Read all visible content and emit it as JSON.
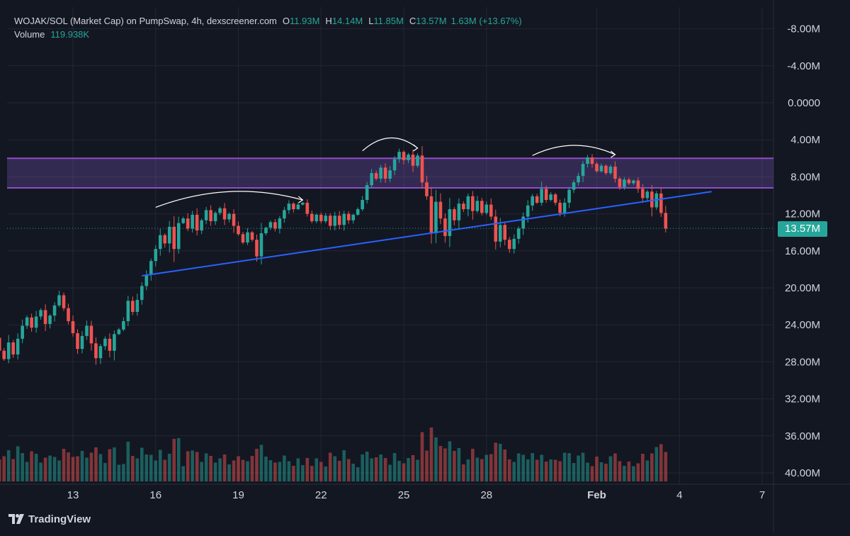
{
  "legend": {
    "title": "WOJAK/SOL (Market Cap) on PumpSwap, 4h, dexscreener.com",
    "open_label": "O",
    "open_value": "11.93M",
    "high_label": "H",
    "high_value": "14.14M",
    "low_label": "L",
    "low_value": "11.85M",
    "close_label": "C",
    "close_value": "13.57M",
    "change": "1.63M (+13.67%)",
    "volume_label": "Volume",
    "volume_value": "119.938K"
  },
  "branding": {
    "logo_text": "TradingView"
  },
  "colors": {
    "background": "#131722",
    "up": "#26a69a",
    "down": "#ef5350",
    "trendline": "#2962ff",
    "zone": "#7e57c2",
    "text": "#d1d4dc"
  },
  "chart_data": {
    "type": "candlestick",
    "timeframe": "4h",
    "axis_inverted": true,
    "ylim": [
      -10000000,
      41000000
    ],
    "y_ticks": [
      "-8.00M",
      "-4.00M",
      "0.0000",
      "4.00M",
      "8.00M",
      "12.00M",
      "16.00M",
      "20.00M",
      "24.00M",
      "28.00M",
      "32.00M",
      "36.00M",
      "40.00M"
    ],
    "y_tick_values": [
      -8000000,
      -4000000,
      0,
      4000000,
      8000000,
      12000000,
      16000000,
      20000000,
      24000000,
      28000000,
      32000000,
      36000000,
      40000000
    ],
    "x_ticks": [
      "13",
      "16",
      "19",
      "22",
      "25",
      "28",
      "Feb",
      "4",
      "7"
    ],
    "x_tick_dates": [
      "2025-01-13",
      "2025-01-16",
      "2025-01-19",
      "2025-01-22",
      "2025-01-25",
      "2025-01-28",
      "2025-02-01",
      "2025-02-04",
      "2025-02-07"
    ],
    "x_range": [
      "2025-01-10T12:00",
      "2025-02-08T12:00"
    ],
    "last_price_label": "13.57M",
    "last_price": 13570000,
    "resistance_zone": [
      6000000,
      9200000
    ],
    "trendline": [
      [
        "2025-01-16T00:00",
        18700000
      ],
      [
        "2025-02-05T16:00",
        9600000
      ]
    ],
    "arcs": [
      {
        "from": [
          "2025-01-16T12:00",
          11300000
        ],
        "to": [
          "2025-01-21T20:00",
          10500000
        ],
        "peak": 9600000
      },
      {
        "from": [
          "2025-01-24T00:00",
          5200000
        ],
        "to": [
          "2025-01-26T00:00",
          4900000
        ],
        "peak": 3800000
      },
      {
        "from": [
          "2025-01-30T04:00",
          5700000
        ],
        "to": [
          "2025-02-02T04:00",
          5600000
        ],
        "peak": 4600000
      }
    ],
    "series": [
      {
        "name": "Market Cap",
        "candles": [
          {
            "t": "2025-01-10T20:00",
            "o": 25400000,
            "c": 26800000
          },
          {
            "t": "2025-01-11T00:00",
            "o": 26800000,
            "c": 27700000
          },
          {
            "t": "2025-01-11T04:00",
            "o": 27700000,
            "c": 25900000
          },
          {
            "t": "2025-01-11T08:00",
            "o": 25900000,
            "c": 27200000
          },
          {
            "t": "2025-01-11T12:00",
            "o": 27200000,
            "c": 25500000
          },
          {
            "t": "2025-01-11T16:00",
            "o": 25500000,
            "c": 24100000
          },
          {
            "t": "2025-01-11T20:00",
            "o": 24100000,
            "c": 23200000
          },
          {
            "t": "2025-01-12T00:00",
            "o": 23200000,
            "c": 24300000
          },
          {
            "t": "2025-01-12T04:00",
            "o": 24300000,
            "c": 23100000
          },
          {
            "t": "2025-01-12T08:00",
            "o": 23100000,
            "c": 22400000
          },
          {
            "t": "2025-01-12T12:00",
            "o": 22400000,
            "c": 23900000
          },
          {
            "t": "2025-01-12T16:00",
            "o": 23900000,
            "c": 23000000
          },
          {
            "t": "2025-01-12T20:00",
            "o": 23000000,
            "c": 21900000
          },
          {
            "t": "2025-01-13T00:00",
            "o": 21900000,
            "c": 20800000
          },
          {
            "t": "2025-01-13T04:00",
            "o": 20800000,
            "c": 22200000
          },
          {
            "t": "2025-01-13T08:00",
            "o": 22200000,
            "c": 23600000
          },
          {
            "t": "2025-01-13T12:00",
            "o": 23600000,
            "c": 24900000
          },
          {
            "t": "2025-01-13T16:00",
            "o": 24900000,
            "c": 26600000
          },
          {
            "t": "2025-01-13T20:00",
            "o": 26600000,
            "c": 25200000
          },
          {
            "t": "2025-01-14T00:00",
            "o": 25200000,
            "c": 24100000
          },
          {
            "t": "2025-01-14T04:00",
            "o": 24100000,
            "c": 26000000
          },
          {
            "t": "2025-01-14T08:00",
            "o": 26000000,
            "c": 27600000
          },
          {
            "t": "2025-01-14T12:00",
            "o": 27600000,
            "c": 26300000
          },
          {
            "t": "2025-01-14T16:00",
            "o": 26300000,
            "c": 25500000
          },
          {
            "t": "2025-01-14T20:00",
            "o": 25500000,
            "c": 26800000
          },
          {
            "t": "2025-01-15T00:00",
            "o": 26800000,
            "c": 25000000
          },
          {
            "t": "2025-01-15T04:00",
            "o": 25000000,
            "c": 24500000
          },
          {
            "t": "2025-01-15T08:00",
            "o": 24500000,
            "c": 23600000
          },
          {
            "t": "2025-01-15T12:00",
            "o": 23600000,
            "c": 21400000
          },
          {
            "t": "2025-01-15T16:00",
            "o": 21400000,
            "c": 22600000
          },
          {
            "t": "2025-01-15T20:00",
            "o": 22600000,
            "c": 21300000
          },
          {
            "t": "2025-01-16T00:00",
            "o": 21300000,
            "c": 19800000
          },
          {
            "t": "2025-01-16T04:00",
            "o": 19800000,
            "c": 18600000
          },
          {
            "t": "2025-01-16T08:00",
            "o": 18600000,
            "c": 17100000
          },
          {
            "t": "2025-01-16T12:00",
            "o": 17100000,
            "c": 15800000
          },
          {
            "t": "2025-01-16T16:00",
            "o": 15800000,
            "c": 14300000
          },
          {
            "t": "2025-01-16T20:00",
            "o": 14300000,
            "c": 15200000
          },
          {
            "t": "2025-01-17T00:00",
            "o": 15200000,
            "c": 13400000
          },
          {
            "t": "2025-01-17T04:00",
            "o": 13400000,
            "c": 15800000
          },
          {
            "t": "2025-01-17T08:00",
            "o": 15800000,
            "c": 13000000
          },
          {
            "t": "2025-01-17T12:00",
            "o": 13000000,
            "c": 12500000
          },
          {
            "t": "2025-01-17T16:00",
            "o": 12500000,
            "c": 13600000
          },
          {
            "t": "2025-01-17T20:00",
            "o": 13600000,
            "c": 12100000
          },
          {
            "t": "2025-01-18T00:00",
            "o": 12100000,
            "c": 13800000
          },
          {
            "t": "2025-01-18T04:00",
            "o": 13800000,
            "c": 12700000
          },
          {
            "t": "2025-01-18T08:00",
            "o": 12700000,
            "c": 11600000
          },
          {
            "t": "2025-01-18T12:00",
            "o": 11600000,
            "c": 12800000
          },
          {
            "t": "2025-01-18T16:00",
            "o": 12800000,
            "c": 11900000
          },
          {
            "t": "2025-01-18T20:00",
            "o": 11900000,
            "c": 11400000
          },
          {
            "t": "2025-01-19T00:00",
            "o": 11400000,
            "c": 12600000
          },
          {
            "t": "2025-01-19T04:00",
            "o": 12600000,
            "c": 12000000
          },
          {
            "t": "2025-01-19T08:00",
            "o": 12000000,
            "c": 13300000
          },
          {
            "t": "2025-01-19T12:00",
            "o": 13300000,
            "c": 14200000
          },
          {
            "t": "2025-01-19T16:00",
            "o": 14200000,
            "c": 15100000
          },
          {
            "t": "2025-01-19T20:00",
            "o": 15100000,
            "c": 14000000
          },
          {
            "t": "2025-01-20T00:00",
            "o": 14000000,
            "c": 14800000
          },
          {
            "t": "2025-01-20T04:00",
            "o": 14800000,
            "c": 16600000
          },
          {
            "t": "2025-01-20T08:00",
            "o": 16600000,
            "c": 14100000
          },
          {
            "t": "2025-01-20T12:00",
            "o": 14100000,
            "c": 13500000
          },
          {
            "t": "2025-01-20T16:00",
            "o": 13500000,
            "c": 12900000
          },
          {
            "t": "2025-01-20T20:00",
            "o": 12900000,
            "c": 13600000
          },
          {
            "t": "2025-01-21T00:00",
            "o": 13600000,
            "c": 12500000
          },
          {
            "t": "2025-01-21T04:00",
            "o": 12500000,
            "c": 11600000
          },
          {
            "t": "2025-01-21T08:00",
            "o": 11600000,
            "c": 10900000
          },
          {
            "t": "2025-01-21T12:00",
            "o": 10900000,
            "c": 11500000
          },
          {
            "t": "2025-01-21T16:00",
            "o": 11500000,
            "c": 11000000
          },
          {
            "t": "2025-01-21T20:00",
            "o": 11000000,
            "c": 10800000
          },
          {
            "t": "2025-01-22T00:00",
            "o": 10800000,
            "c": 12000000
          },
          {
            "t": "2025-01-22T04:00",
            "o": 12000000,
            "c": 12800000
          },
          {
            "t": "2025-01-22T08:00",
            "o": 12800000,
            "c": 12100000
          },
          {
            "t": "2025-01-22T12:00",
            "o": 12100000,
            "c": 12800000
          },
          {
            "t": "2025-01-22T16:00",
            "o": 12800000,
            "c": 12200000
          },
          {
            "t": "2025-01-22T20:00",
            "o": 12200000,
            "c": 13300000
          },
          {
            "t": "2025-01-23T00:00",
            "o": 13300000,
            "c": 12200000
          },
          {
            "t": "2025-01-23T04:00",
            "o": 12200000,
            "c": 13200000
          },
          {
            "t": "2025-01-23T08:00",
            "o": 13200000,
            "c": 12000000
          },
          {
            "t": "2025-01-23T12:00",
            "o": 12000000,
            "c": 12700000
          },
          {
            "t": "2025-01-23T16:00",
            "o": 12700000,
            "c": 12100000
          },
          {
            "t": "2025-01-23T20:00",
            "o": 12100000,
            "c": 11500000
          },
          {
            "t": "2025-01-24T00:00",
            "o": 11500000,
            "c": 10500000
          },
          {
            "t": "2025-01-24T04:00",
            "o": 10500000,
            "c": 8900000
          },
          {
            "t": "2025-01-24T08:00",
            "o": 8900000,
            "c": 7600000
          },
          {
            "t": "2025-01-24T12:00",
            "o": 7600000,
            "c": 8200000
          },
          {
            "t": "2025-01-24T16:00",
            "o": 8200000,
            "c": 7000000
          },
          {
            "t": "2025-01-24T20:00",
            "o": 7000000,
            "c": 8200000
          },
          {
            "t": "2025-01-25T00:00",
            "o": 8200000,
            "c": 7300000
          },
          {
            "t": "2025-01-25T04:00",
            "o": 7300000,
            "c": 6100000
          },
          {
            "t": "2025-01-25T08:00",
            "o": 6100000,
            "c": 5300000
          },
          {
            "t": "2025-01-25T12:00",
            "o": 5300000,
            "c": 6200000
          },
          {
            "t": "2025-01-25T16:00",
            "o": 6200000,
            "c": 5600000
          },
          {
            "t": "2025-01-25T20:00",
            "o": 5600000,
            "c": 6800000
          },
          {
            "t": "2025-01-26T00:00",
            "o": 6800000,
            "c": 5700000
          },
          {
            "t": "2025-01-26T04:00",
            "o": 5700000,
            "c": 8600000
          },
          {
            "t": "2025-01-26T08:00",
            "o": 8600000,
            "c": 10100000
          },
          {
            "t": "2025-01-26T12:00",
            "o": 10100000,
            "c": 14100000
          },
          {
            "t": "2025-01-26T16:00",
            "o": 14100000,
            "c": 10700000
          },
          {
            "t": "2025-01-26T20:00",
            "o": 10700000,
            "c": 12500000
          },
          {
            "t": "2025-01-27T00:00",
            "o": 12500000,
            "c": 14400000
          },
          {
            "t": "2025-01-27T04:00",
            "o": 14400000,
            "c": 11500000
          },
          {
            "t": "2025-01-27T08:00",
            "o": 11500000,
            "c": 12700000
          },
          {
            "t": "2025-01-27T12:00",
            "o": 12700000,
            "c": 10900000
          },
          {
            "t": "2025-01-27T16:00",
            "o": 10900000,
            "c": 11500000
          },
          {
            "t": "2025-01-27T20:00",
            "o": 11500000,
            "c": 10100000
          },
          {
            "t": "2025-01-28T00:00",
            "o": 10100000,
            "c": 11700000
          },
          {
            "t": "2025-01-28T04:00",
            "o": 11700000,
            "c": 10600000
          },
          {
            "t": "2025-01-28T08:00",
            "o": 10600000,
            "c": 11900000
          },
          {
            "t": "2025-01-28T12:00",
            "o": 11900000,
            "c": 11000000
          },
          {
            "t": "2025-01-28T16:00",
            "o": 11000000,
            "c": 12300000
          },
          {
            "t": "2025-01-28T20:00",
            "o": 12300000,
            "c": 15000000
          },
          {
            "t": "2025-01-29T00:00",
            "o": 15000000,
            "c": 13200000
          },
          {
            "t": "2025-01-29T04:00",
            "o": 13200000,
            "c": 14800000
          },
          {
            "t": "2025-01-29T08:00",
            "o": 14800000,
            "c": 15800000
          },
          {
            "t": "2025-01-29T12:00",
            "o": 15800000,
            "c": 14700000
          },
          {
            "t": "2025-01-29T16:00",
            "o": 14700000,
            "c": 13600000
          },
          {
            "t": "2025-01-29T20:00",
            "o": 13600000,
            "c": 12300000
          },
          {
            "t": "2025-01-30T00:00",
            "o": 12300000,
            "c": 11100000
          },
          {
            "t": "2025-01-30T04:00",
            "o": 11100000,
            "c": 10100000
          },
          {
            "t": "2025-01-30T08:00",
            "o": 10100000,
            "c": 10800000
          },
          {
            "t": "2025-01-30T12:00",
            "o": 10800000,
            "c": 9300000
          },
          {
            "t": "2025-01-30T16:00",
            "o": 9300000,
            "c": 10500000
          },
          {
            "t": "2025-01-30T20:00",
            "o": 10500000,
            "c": 9900000
          },
          {
            "t": "2025-01-31T00:00",
            "o": 9900000,
            "c": 10800000
          },
          {
            "t": "2025-01-31T04:00",
            "o": 10800000,
            "c": 11900000
          },
          {
            "t": "2025-01-31T08:00",
            "o": 11900000,
            "c": 10800000
          },
          {
            "t": "2025-01-31T12:00",
            "o": 10800000,
            "c": 9400000
          },
          {
            "t": "2025-01-31T16:00",
            "o": 9400000,
            "c": 8600000
          },
          {
            "t": "2025-01-31T20:00",
            "o": 8600000,
            "c": 7900000
          },
          {
            "t": "2025-02-01T00:00",
            "o": 7900000,
            "c": 6600000
          },
          {
            "t": "2025-02-01T04:00",
            "o": 6600000,
            "c": 5900000
          },
          {
            "t": "2025-02-01T08:00",
            "o": 5900000,
            "c": 6600000
          },
          {
            "t": "2025-02-01T12:00",
            "o": 6600000,
            "c": 7400000
          },
          {
            "t": "2025-02-01T16:00",
            "o": 7400000,
            "c": 6800000
          },
          {
            "t": "2025-02-01T20:00",
            "o": 6800000,
            "c": 7600000
          },
          {
            "t": "2025-02-02T00:00",
            "o": 7600000,
            "c": 6900000
          },
          {
            "t": "2025-02-02T04:00",
            "o": 6900000,
            "c": 8200000
          },
          {
            "t": "2025-02-02T08:00",
            "o": 8200000,
            "c": 9100000
          },
          {
            "t": "2025-02-02T12:00",
            "o": 9100000,
            "c": 8300000
          },
          {
            "t": "2025-02-02T16:00",
            "o": 8300000,
            "c": 8700000
          },
          {
            "t": "2025-02-02T20:00",
            "o": 8700000,
            "c": 8400000
          },
          {
            "t": "2025-02-03T00:00",
            "o": 8400000,
            "c": 9300000
          },
          {
            "t": "2025-02-03T04:00",
            "o": 9300000,
            "c": 10300000
          },
          {
            "t": "2025-02-03T08:00",
            "o": 10300000,
            "c": 9600000
          },
          {
            "t": "2025-02-03T12:00",
            "o": 9600000,
            "c": 11300000
          },
          {
            "t": "2025-02-03T16:00",
            "o": 11300000,
            "c": 9800000
          },
          {
            "t": "2025-02-03T20:00",
            "o": 9800000,
            "c": 11900000
          },
          {
            "t": "2025-02-04T00:00",
            "o": 11900000,
            "c": 13600000
          }
        ]
      },
      {
        "name": "Volume"
      }
    ]
  }
}
